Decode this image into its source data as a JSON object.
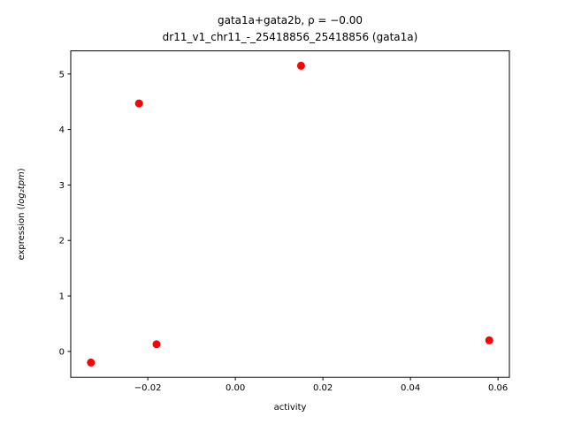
{
  "figure": {
    "background": "#ffffff"
  },
  "chart_data": {
    "type": "scatter",
    "title": "gata1a+gata2b, ρ = −0.00",
    "subtitle": "dr11_v1_chr11_-_25418856_25418856 (gata1a)",
    "xlabel": "activity",
    "ylabel_prefix": "expression (",
    "ylabel_math": "log₂tpm",
    "ylabel_suffix": ")",
    "marker_color": "#ff0000",
    "axis_color": "#000000",
    "legend": "none",
    "grid": false,
    "xlim": [
      -0.0376,
      0.0626
    ],
    "ylim": [
      -0.4675,
      5.4175
    ],
    "x_ticks": [
      {
        "value": -0.02,
        "label": "−0.02"
      },
      {
        "value": 0.0,
        "label": "0.00"
      },
      {
        "value": 0.02,
        "label": "0.02"
      },
      {
        "value": 0.04,
        "label": "0.04"
      },
      {
        "value": 0.06,
        "label": "0.06"
      }
    ],
    "y_ticks": [
      {
        "value": 0,
        "label": "0"
      },
      {
        "value": 1,
        "label": "1"
      },
      {
        "value": 2,
        "label": "2"
      },
      {
        "value": 3,
        "label": "3"
      },
      {
        "value": 4,
        "label": "4"
      },
      {
        "value": 5,
        "label": "5"
      }
    ],
    "points": [
      {
        "x": -0.033,
        "y": -0.2
      },
      {
        "x": -0.022,
        "y": 4.47
      },
      {
        "x": -0.018,
        "y": 0.13
      },
      {
        "x": 0.015,
        "y": 5.15
      },
      {
        "x": 0.058,
        "y": 0.2
      }
    ]
  }
}
